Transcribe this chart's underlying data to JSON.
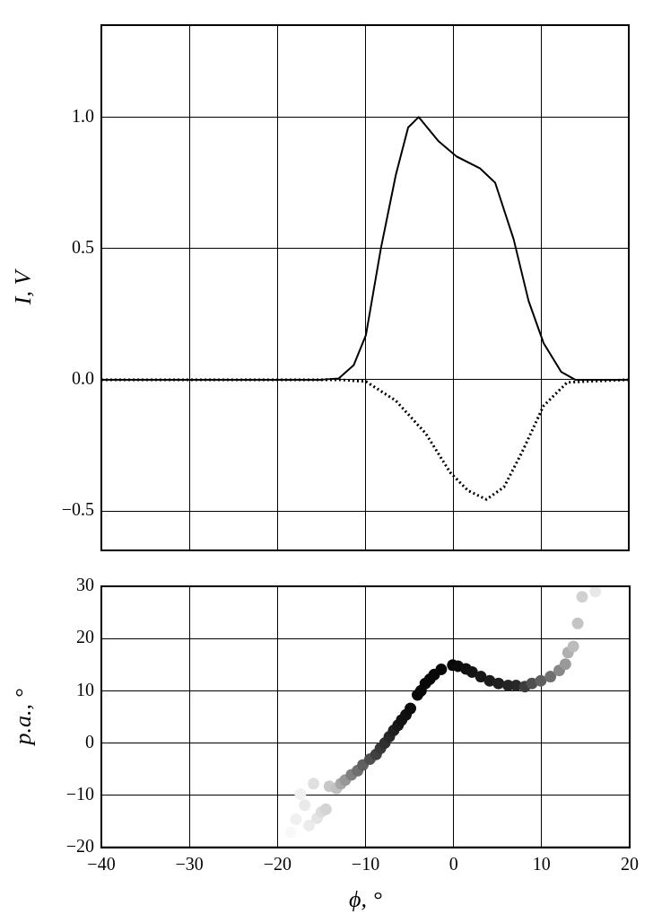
{
  "chart_data": [
    {
      "type": "line",
      "ylabel": "I, V",
      "xlim": [
        -40,
        20
      ],
      "ylim": [
        -0.65,
        1.35
      ],
      "xticks": [
        -40,
        -30,
        -20,
        -10,
        0,
        10,
        20
      ],
      "yticks": [
        {
          "value": -0.5,
          "label": "−0.5"
        },
        {
          "value": 0,
          "label": "0.0"
        },
        {
          "value": 0.5,
          "label": "0.5"
        },
        {
          "value": 1,
          "label": "1.0"
        }
      ],
      "grid": true,
      "legend": false,
      "tick_labels": "y",
      "marker": "none",
      "series": [
        {
          "color": "#000000",
          "line_style": "solid",
          "x": [
            -40,
            -15,
            -13,
            -11.3,
            -9.9,
            -8.2,
            -6.5,
            -5.1,
            -3.9,
            -1.7,
            0.4,
            3.1,
            4.8,
            6.9,
            8.6,
            10.3,
            12.3,
            13.9,
            20
          ],
          "values": [
            0,
            0,
            0.005,
            0.055,
            0.17,
            0.5,
            0.78,
            0.96,
            1.0,
            0.91,
            0.85,
            0.804,
            0.75,
            0.535,
            0.3,
            0.14,
            0.03,
            0,
            0
          ]
        },
        {
          "color": "#000000",
          "line_style": "dotted",
          "x": [
            -40,
            -13,
            -9.9,
            -6.5,
            -3.1,
            -0.3,
            1.7,
            3.8,
            5.8,
            7.9,
            10.3,
            13,
            20
          ],
          "values": [
            0,
            0,
            -0.007,
            -0.08,
            -0.205,
            -0.354,
            -0.422,
            -0.456,
            -0.409,
            -0.273,
            -0.1,
            -0.01,
            0
          ]
        }
      ]
    },
    {
      "type": "scatter",
      "xlabel": "ϕ, °",
      "ylabel": "p.a., °",
      "xlim": [
        -40,
        20
      ],
      "ylim": [
        -20,
        30
      ],
      "xticks": [
        {
          "value": -40,
          "label": "−40"
        },
        {
          "value": -30,
          "label": "−30"
        },
        {
          "value": -20,
          "label": "−20"
        },
        {
          "value": -10,
          "label": "−10"
        },
        0,
        10,
        20
      ],
      "yticks": [
        {
          "value": -20,
          "label": "−20"
        },
        {
          "value": -10,
          "label": "−10"
        },
        0,
        10,
        20,
        30
      ],
      "grid": true,
      "legend": false,
      "marker": "circle",
      "x": [
        -18.5,
        -17.9,
        -17.4,
        -16.9,
        -16.4,
        -15.9,
        -15.5,
        -15,
        -14.5,
        -14.1,
        -13.3,
        -12.8,
        -12.3,
        -11.6,
        -10.9,
        -10.3,
        -9.5,
        -8.8,
        -8.3,
        -7.8,
        -7.3,
        -6.8,
        -6.3,
        -5.9,
        -5.4,
        -4.9,
        -4.1,
        -3.7,
        -3.2,
        -2.7,
        -2.2,
        -1.4,
        -0.1,
        0.5,
        1.4,
        2.1,
        3.1,
        4.1,
        5.1,
        6.2,
        7.1,
        8.1,
        8.9,
        9.9,
        11,
        12,
        12.7,
        13,
        13.6,
        14.1,
        14.6,
        16.1
      ],
      "values": [
        -17.1,
        -14.6,
        -9.8,
        -11.9,
        -15.8,
        -7.8,
        -14.4,
        -13.2,
        -12.7,
        -8.3,
        -8.7,
        -7.8,
        -7.1,
        -6.1,
        -5.3,
        -4.2,
        -3.1,
        -2.2,
        -1,
        0,
        1.2,
        2.4,
        3.4,
        4.4,
        5.4,
        6.6,
        9.2,
        10,
        11.4,
        12.2,
        13.1,
        14.1,
        14.9,
        14.7,
        14.2,
        13.6,
        12.7,
        11.9,
        11.4,
        11,
        11,
        10.8,
        11.4,
        11.9,
        12.7,
        13.9,
        15.1,
        17.3,
        18.5,
        22.9,
        28,
        29
      ],
      "colors": [
        "#f8f8f8",
        "#f0f0f0",
        "#f0f0f0",
        "#eaeaea",
        "#ebebeb",
        "#e0e0e0",
        "#e4e4e4",
        "#dcdcdc",
        "#d4d4d4",
        "#c8c8c8",
        "#c0c0c0",
        "#a8a8a8",
        "#989898",
        "#808080",
        "#707070",
        "#606060",
        "#505050",
        "#404040",
        "#383838",
        "#303030",
        "#282828",
        "#202020",
        "#181818",
        "#141414",
        "#101010",
        "#0c0c0c",
        "#080808",
        "#080808",
        "#080808",
        "#080808",
        "#080808",
        "#080808",
        "#080808",
        "#0c0c0c",
        "#101010",
        "#141414",
        "#181818",
        "#1c1c1c",
        "#202020",
        "#242424",
        "#282828",
        "#3c3c3c",
        "#505050",
        "#606060",
        "#707070",
        "#888888",
        "#999999",
        "#b0b0b0",
        "#bcbcbc",
        "#c4c4c4",
        "#d0d0d0",
        "#e8e8e8"
      ]
    }
  ]
}
